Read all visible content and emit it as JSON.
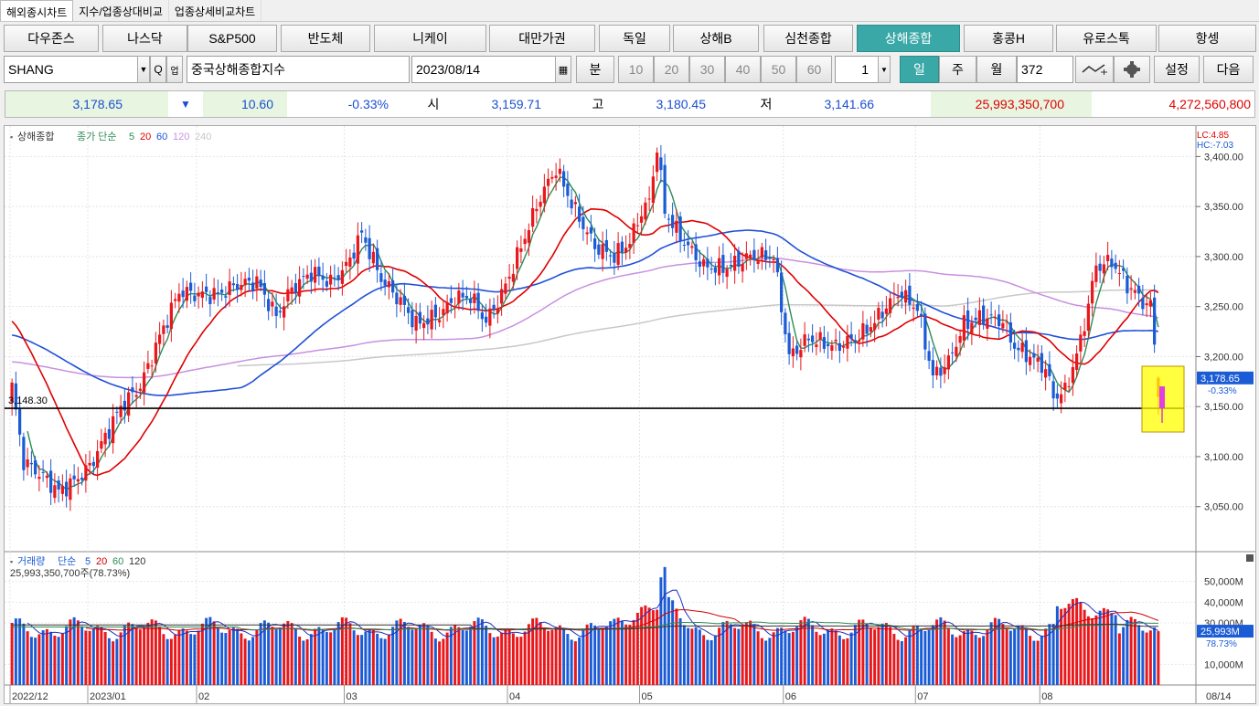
{
  "tabs": [
    {
      "label": "해외종시차트",
      "active": true
    },
    {
      "label": "지수/업종상대비교",
      "active": false
    },
    {
      "label": "업종상세비교차트",
      "active": false
    }
  ],
  "indices": [
    {
      "label": "다우존스"
    },
    {
      "label": "나스닥"
    },
    {
      "label": "S&P500"
    },
    {
      "label": "반도체"
    },
    {
      "label": "니케이"
    },
    {
      "label": "대만가권"
    },
    {
      "label": "독일"
    },
    {
      "label": "상해B"
    },
    {
      "label": "심천종합"
    },
    {
      "label": "상해종합",
      "active": true
    },
    {
      "label": "홍콩H"
    },
    {
      "label": "유로스톡"
    },
    {
      "label": "항셍"
    }
  ],
  "controls": {
    "symbol": "SHANG",
    "name": "중국상해종합지수",
    "date": "2023/08/14",
    "minute_label": "분",
    "minute_options": [
      "10",
      "20",
      "30",
      "40",
      "50",
      "60"
    ],
    "count": "1",
    "period_day": "일",
    "period_week": "주",
    "period_month": "월",
    "bars": "372",
    "settings_label": "설정",
    "next_label": "다음",
    "search_icon_text": "Q",
    "sub_label": "업"
  },
  "colors": {
    "up": "#e8181c",
    "down": "#1b5cd6",
    "ma5": "#2e8b57",
    "ma20": "#e00000",
    "ma60": "#2050d8",
    "ma120": "#c890e0",
    "ma240": "#c8c8c8",
    "accent": "#3ba8a8"
  },
  "quote": {
    "close": "3,178.65",
    "arrow": "▼",
    "change": "10.60",
    "change_pct": "-0.33%",
    "open_label": "시",
    "open": "3,159.71",
    "high_label": "고",
    "high": "3,180.45",
    "low_label": "저",
    "low": "3,141.66",
    "volume": "25,993,350,700",
    "amount": "4,272,560,800"
  },
  "chart_data": {
    "type": "candlestick",
    "legend": {
      "name": "상해종합",
      "desc": "종가 단순",
      "ma": [
        "5",
        "20",
        "60",
        "120",
        "240"
      ]
    },
    "lc": "LC:4.85",
    "hc": "HC:-7.03",
    "ylim": [
      3005,
      3425
    ],
    "yticks": [
      "3,400.00",
      "3,350.00",
      "3,300.00",
      "3,250.00",
      "3,200.00",
      "3,150.00",
      "3,100.00",
      "3,050.00"
    ],
    "ytick_values": [
      3400,
      3350,
      3300,
      3250,
      3200,
      3150,
      3100,
      3050
    ],
    "hline_value": 3148.3,
    "hline_label": "3,148.30",
    "price_badge": "3,178.65",
    "price_badge_pct": "-0.33%",
    "xlabels": [
      "2022/12",
      "2023/01",
      "02",
      "03",
      "04",
      "05",
      "06",
      "07",
      "08",
      "08/14"
    ],
    "xlabel_idx": [
      0,
      20,
      48,
      86,
      128,
      162,
      199,
      233,
      265,
      300
    ],
    "volume": {
      "legend": {
        "name": "거래량",
        "desc": "단순",
        "ma": [
          "5",
          "20",
          "60",
          "120"
        ]
      },
      "info": "25,993,350,700주(78.73%)",
      "ylim": [
        0,
        60
      ],
      "yticks": [
        "50,000M",
        "40,000M",
        "30,000M",
        "10,000M"
      ],
      "ytick_values": [
        50,
        40,
        30,
        10
      ],
      "badge": "25,993M",
      "badge_pct": "78.73%"
    }
  }
}
